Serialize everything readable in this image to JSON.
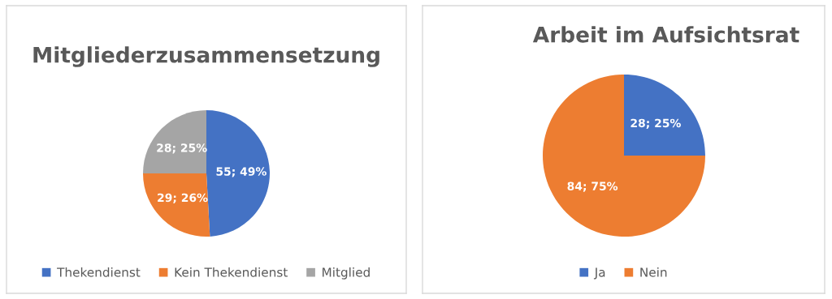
{
  "chart_data": [
    {
      "type": "pie",
      "title": "Mitgliederzusammensetzung",
      "categories": [
        "Thekendienst",
        "Kein Thekendienst",
        "Mitglied"
      ],
      "values": [
        55,
        29,
        28
      ],
      "colors": [
        "#4472c4",
        "#ed7d31",
        "#a5a5a5"
      ],
      "value_labels": [
        "55; 49%",
        "29; 26%",
        "28; 25%"
      ],
      "legend": "bottom"
    },
    {
      "type": "pie",
      "title": "Arbeit im Aufsichtsrat",
      "categories": [
        "Ja",
        "Nein"
      ],
      "values": [
        28,
        84
      ],
      "colors": [
        "#4472c4",
        "#ed7d31"
      ],
      "value_labels": [
        "28; 25%",
        "84; 75%"
      ],
      "legend": "bottom"
    }
  ]
}
